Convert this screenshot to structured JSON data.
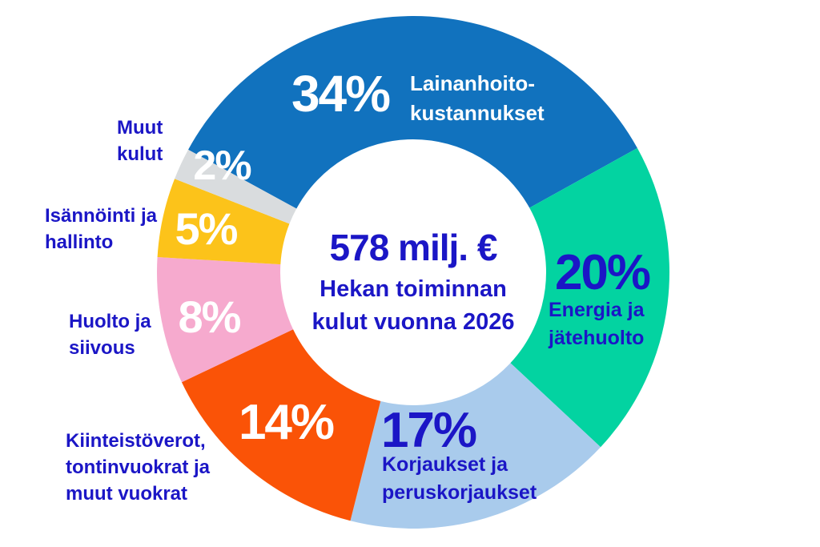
{
  "chart_data": {
    "type": "pie",
    "subtype": "donut",
    "title": "Hekan toiminnan kulut vuonna 2026",
    "total_label": "578 milj. €",
    "unit": "%",
    "direction": "clockwise",
    "start_angle_deg": -61.4,
    "legend_position": "none",
    "segments": [
      {
        "id": "lainanhoitokustannukset",
        "label": "Lainanhoito-\nkustannukset",
        "value": 34,
        "value_label": "34%",
        "color": "#1172BE",
        "value_label_color": "#FFFFFF",
        "label_color": "#FFFFFF",
        "label_position": "inside"
      },
      {
        "id": "energia-ja-jatehuolto",
        "label": "Energia ja\njätehuolto",
        "value": 20,
        "value_label": "20%",
        "color": "#03D3A1",
        "value_label_color": "#1B16C6",
        "label_color": "#1B16C6",
        "label_position": "inside"
      },
      {
        "id": "korjaukset-ja-peruskorjaukset",
        "label": "Korjaukset ja\nperuskorjaukset",
        "value": 17,
        "value_label": "17%",
        "color": "#A9CBEC",
        "value_label_color": "#1B16C6",
        "label_color": "#1B16C6",
        "label_position": "inside"
      },
      {
        "id": "kiinteistoverot-tontinvuokrat-ja-muut-vuokrat",
        "label": "Kiinteistöverot,\ntontinvuokrat ja\nmuut vuokrat",
        "value": 14,
        "value_label": "14%",
        "color": "#FA5307",
        "value_label_color": "#FFFFFF",
        "label_color": "#1B16C6",
        "label_position": "outside"
      },
      {
        "id": "huolto-ja-siivous",
        "label": "Huolto ja\nsiivous",
        "value": 8,
        "value_label": "8%",
        "color": "#F6AACE",
        "value_label_color": "#FFFFFF",
        "label_color": "#1B16C6",
        "label_position": "outside"
      },
      {
        "id": "isannointi-ja-hallinto",
        "label": "Isännöinti ja\nhallinto",
        "value": 5,
        "value_label": "5%",
        "color": "#FCC31A",
        "value_label_color": "#FFFFFF",
        "label_color": "#1B16C6",
        "label_position": "outside"
      },
      {
        "id": "muut-kulut",
        "label": "Muut\nkulut",
        "value": 2,
        "value_label": "2%",
        "color": "#D9DCDE",
        "value_label_color": "#FFFFFF",
        "label_color": "#1B16C6",
        "label_position": "outside"
      }
    ],
    "center": {
      "value": "578 milj. €",
      "subtitle": "Hekan toiminnan\nkulut vuonna 2026"
    }
  },
  "colors": {
    "text_primary": "#1B16C6",
    "background": "#FFFFFF"
  }
}
